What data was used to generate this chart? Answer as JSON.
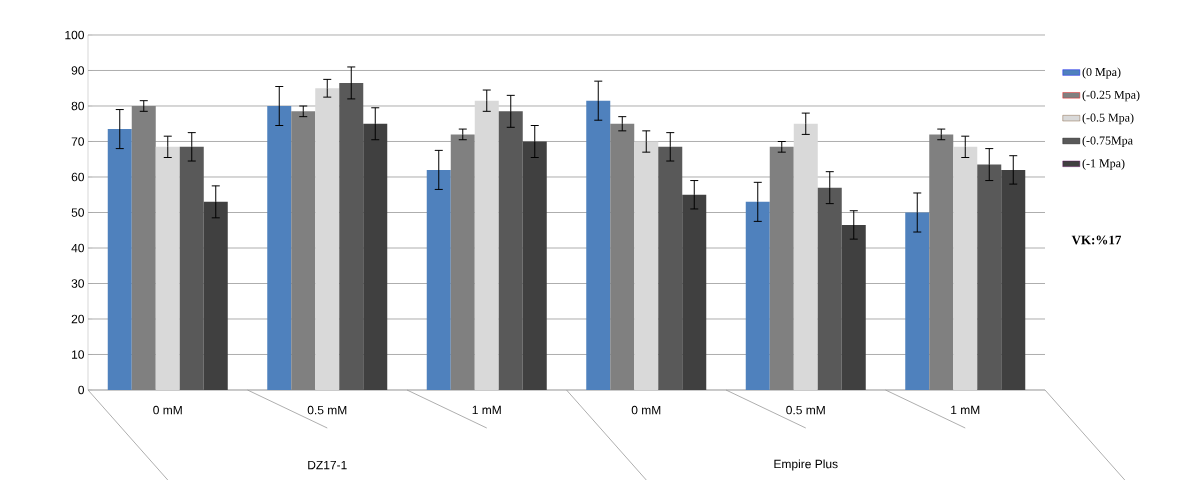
{
  "chart_data": {
    "type": "bar",
    "categories": [
      "0 mM",
      "0.5 mM",
      "1 mM",
      "0 mM",
      "0.5 mM",
      "1 mM"
    ],
    "series": [
      {
        "name": "(0 Mpa)",
        "color": "#4f81bd",
        "values": [
          73.5,
          80,
          62,
          81.5,
          53,
          50
        ],
        "errors": [
          5.5,
          5.5,
          5.5,
          5.5,
          5.5,
          5.5
        ]
      },
      {
        "name": "(-0.25 Mpa)",
        "color": "#808080",
        "values": [
          80,
          78.5,
          72,
          75,
          68.5,
          72
        ],
        "errors": [
          1.5,
          1.5,
          1.5,
          2,
          1.5,
          1.5
        ]
      },
      {
        "name": "(-0.5 Mpa)",
        "color": "#d9d9d9",
        "values": [
          68.5,
          85,
          81.5,
          70,
          75,
          68.5
        ],
        "errors": [
          3,
          2.5,
          3,
          3,
          3,
          3
        ]
      },
      {
        "name": "(-0.75Mpa",
        "color": "#595959",
        "values": [
          68.5,
          86.5,
          78.5,
          68.5,
          57,
          63.5
        ],
        "errors": [
          4,
          4.5,
          4.5,
          4,
          4.5,
          4.5
        ]
      },
      {
        "name": "(-1 Mpa)",
        "color": "#404040",
        "values": [
          53,
          75,
          70,
          55,
          46.5,
          62
        ],
        "errors": [
          4.5,
          4.5,
          4.5,
          4,
          4,
          4
        ]
      }
    ],
    "ylim": [
      0,
      100
    ],
    "yticks": [
      0,
      10,
      20,
      30,
      40,
      50,
      60,
      70,
      80,
      90,
      100
    ],
    "grid": "y",
    "legend": "right",
    "annotations": [
      "DZ17-1",
      "Empire Plus",
      "**VK:%17**"
    ]
  }
}
